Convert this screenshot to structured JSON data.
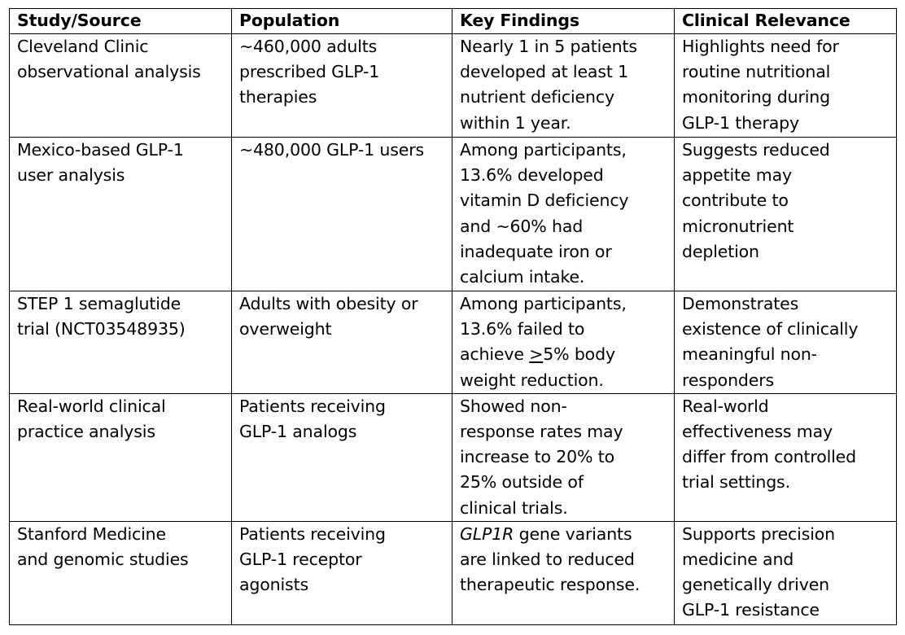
{
  "table": {
    "headers": [
      "Study/Source",
      "Population",
      "Key Findings",
      "Clinical Relevance"
    ],
    "rows": [
      {
        "study": [
          "Cleveland Clinic",
          "observational analysis"
        ],
        "population": [
          "~460,000 adults",
          "prescribed GLP-1",
          "therapies"
        ],
        "findings": [
          "Nearly 1 in 5 patients",
          "developed at least 1",
          "nutrient deficiency",
          "within 1 year."
        ],
        "relevance": [
          "Highlights need for",
          "routine nutritional",
          "monitoring during",
          "GLP-1 therapy"
        ]
      },
      {
        "study": [
          "Mexico-based GLP-1",
          "user analysis"
        ],
        "population": [
          "~480,000 GLP-1 users"
        ],
        "findings": [
          "Among participants,",
          "13.6% developed",
          "vitamin D deficiency",
          "and ~60% had",
          "inadequate iron or",
          "calcium intake."
        ],
        "relevance": [
          "Suggests reduced",
          "appetite may",
          "contribute to",
          "micronutrient",
          "depletion"
        ]
      },
      {
        "study": [
          "STEP 1 semaglutide",
          "trial (NCT03548935)"
        ],
        "population": [
          "Adults with obesity or",
          "overweight"
        ],
        "findings": [
          "Among participants,",
          "13.6% failed to"
        ],
        "findings_line3_prefix": "achieve ",
        "findings_line3_symbol": ">",
        "findings_line3_suffix": "5% body",
        "findings_line4": "weight reduction.",
        "relevance": [
          "Demonstrates",
          "existence of clinically",
          "meaningful non-",
          "responders"
        ]
      },
      {
        "study": [
          "Real-world clinical",
          "practice analysis"
        ],
        "population": [
          "Patients receiving",
          "GLP-1 analogs"
        ],
        "findings": [
          "Showed non-",
          "response rates may",
          "increase to 20% to",
          "25% outside of",
          "clinical trials."
        ],
        "relevance": [
          "Real-world",
          "effectiveness may",
          "differ from controlled",
          "trial settings."
        ]
      },
      {
        "study": [
          "Stanford Medicine",
          "and genomic studies"
        ],
        "population": [
          "Patients receiving",
          "GLP-1 receptor",
          "agonists"
        ],
        "findings_gene": "GLP1R",
        "findings_line1_suffix": " gene variants",
        "findings": [
          "are linked to reduced",
          "therapeutic response."
        ],
        "relevance": [
          "Supports precision",
          "medicine and",
          "genetically driven",
          "GLP-1 resistance"
        ]
      }
    ]
  }
}
